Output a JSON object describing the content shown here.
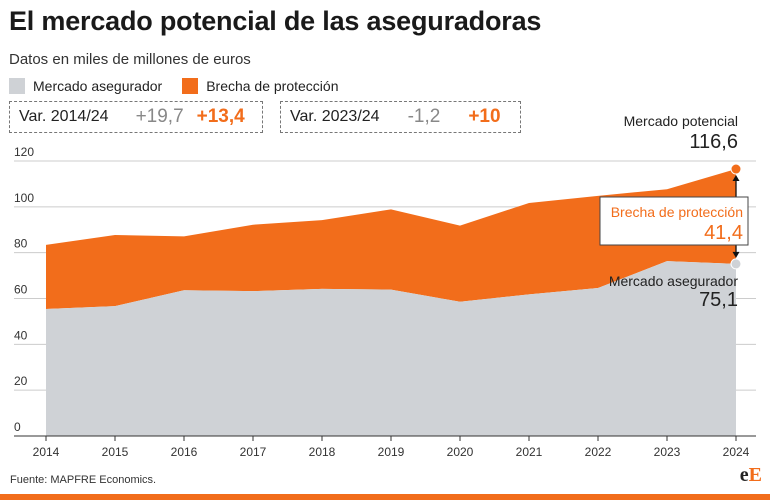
{
  "title": "El mercado potencial de las aseguradoras",
  "subtitle": "Datos en miles de millones de euros",
  "legend": [
    {
      "label": "Mercado asegurador",
      "color": "#cfd2d6"
    },
    {
      "label": "Brecha de protección",
      "color": "#f26d1b"
    }
  ],
  "var_boxes": [
    {
      "label": "Var. 2014/24",
      "v1": "+19,7",
      "v2": "+13,4"
    },
    {
      "label": "Var. 2023/24",
      "v1": "-1,2",
      "v2": "+10"
    }
  ],
  "annotations": {
    "potential_label": "Mercado potencial",
    "potential_value": "116,6",
    "gap_label": "Brecha de protección",
    "gap_value": "41,4",
    "market_label": "Mercado asegurador",
    "market_value": "75,1"
  },
  "footer": "Fuente: MAPFRE Economics.",
  "logo": {
    "small": "e",
    "big": "E"
  },
  "chart_data": {
    "type": "area",
    "stacked": true,
    "x": [
      "2014",
      "2015",
      "2016",
      "2017",
      "2018",
      "2019",
      "2020",
      "2021",
      "2022",
      "2023",
      "2024"
    ],
    "series": [
      {
        "name": "Mercado asegurador",
        "color": "#cfd2d6",
        "values": [
          55.4,
          56.7,
          63.6,
          63.2,
          64.2,
          63.9,
          58.6,
          61.8,
          64.6,
          76.3,
          75.1
        ]
      },
      {
        "name": "Brecha de protección",
        "color": "#f26d1b",
        "values": [
          28.0,
          31.0,
          23.5,
          29.0,
          30.0,
          35.0,
          33.2,
          39.9,
          40.2,
          31.4,
          41.4
        ]
      }
    ],
    "ylim": [
      0,
      120
    ],
    "yticks": [
      0,
      20,
      40,
      60,
      80,
      100,
      120
    ],
    "grid": true
  }
}
